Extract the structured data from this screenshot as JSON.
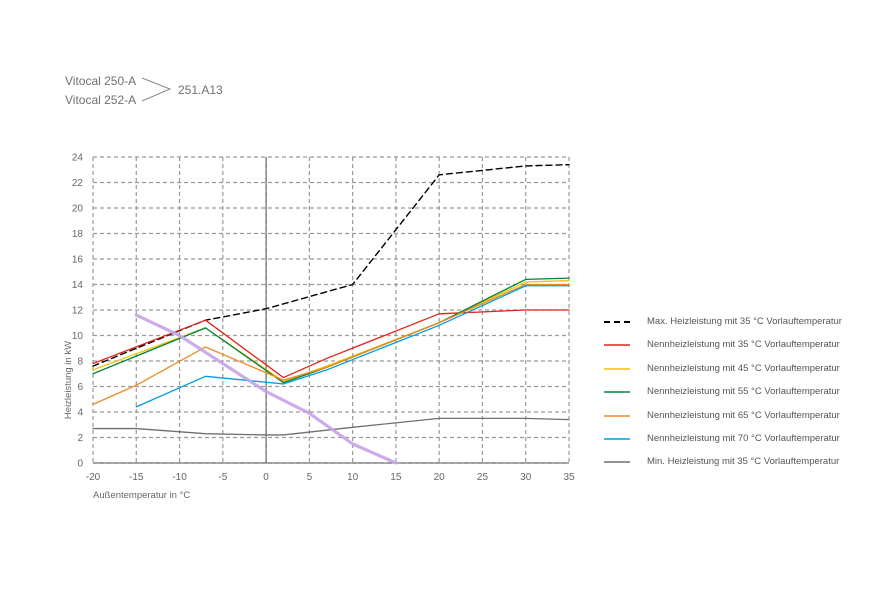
{
  "header": {
    "model_1": "Vitocal 250-A",
    "model_2": "Vitocal 252-A",
    "code": "251.A13"
  },
  "chart_data": {
    "type": "line",
    "xlabel": "Außentemperatur in °C",
    "ylabel": "Heizleistung in kW",
    "xlim": [
      -20,
      35
    ],
    "ylim": [
      0,
      24
    ],
    "xticks": [
      -20,
      -15,
      -10,
      -5,
      0,
      5,
      10,
      15,
      20,
      25,
      30,
      35
    ],
    "yticks": [
      0,
      2,
      4,
      6,
      8,
      10,
      12,
      14,
      16,
      18,
      20,
      22,
      24
    ],
    "grid": true,
    "legend_position": "right",
    "series": [
      {
        "name": "Max. Heizleistung mit 35 °C Vorlauftemperatur",
        "color": "#000000",
        "style": "dashed",
        "x": [
          -20,
          -15,
          -7,
          0,
          10,
          20,
          30,
          35
        ],
        "y": [
          7.6,
          9.0,
          11.2,
          12.1,
          14.0,
          22.6,
          23.3,
          23.4
        ]
      },
      {
        "name": "Nennheizleistung mit 35 °C Vorlauftemperatur",
        "color": "#e2231a",
        "style": "solid",
        "x": [
          -20,
          -7,
          2,
          7,
          20,
          30,
          35
        ],
        "y": [
          7.8,
          11.2,
          6.7,
          8.2,
          11.7,
          12.0,
          12.0
        ]
      },
      {
        "name": "Nennheizleistung mit 45 °C Vorlauftemperatur",
        "color": "#f4c400",
        "style": "solid",
        "x": [
          -20,
          -7,
          2,
          7,
          20,
          30,
          35
        ],
        "y": [
          7.3,
          10.6,
          6.4,
          7.6,
          11.0,
          14.2,
          14.3
        ]
      },
      {
        "name": "Nennheizleistung mit 55 °C Vorlauftemperatur",
        "color": "#00843d",
        "style": "solid",
        "x": [
          -20,
          -7,
          2,
          7,
          20,
          30,
          35
        ],
        "y": [
          7.0,
          10.6,
          6.3,
          7.5,
          11.0,
          14.4,
          14.5
        ]
      },
      {
        "name": "Nennheizleistung mit 65 °C Vorlauftemperatur",
        "color": "#f08a24",
        "style": "solid",
        "x": [
          -20,
          -15,
          -7,
          2,
          7,
          20,
          30,
          35
        ],
        "y": [
          4.6,
          6.1,
          9.1,
          6.5,
          7.5,
          11.0,
          14.0,
          14.0
        ]
      },
      {
        "name": "Nennheizleistung mit 70 °C Vorlauftemperatur",
        "color": "#009fe3",
        "style": "solid",
        "x": [
          -15,
          -7,
          2,
          7,
          20,
          30,
          35
        ],
        "y": [
          4.4,
          6.8,
          6.2,
          7.3,
          10.8,
          13.9,
          13.9
        ]
      },
      {
        "name": "Min. Heizleistung mit 35 °C Vorlauftemperatur",
        "color": "#6f6f6f",
        "style": "solid",
        "x": [
          -20,
          -15,
          -7,
          0,
          2,
          10,
          20,
          30,
          35
        ],
        "y": [
          2.7,
          2.7,
          2.3,
          2.2,
          2.2,
          2.8,
          3.5,
          3.5,
          3.4
        ]
      },
      {
        "name": "",
        "color": "#c6a2e8",
        "style": "solid",
        "width": 3.2,
        "legend": false,
        "x": [
          -15,
          -10,
          -5,
          0,
          5,
          10,
          15
        ],
        "y": [
          11.6,
          10.0,
          7.8,
          5.6,
          3.9,
          1.5,
          0.0
        ]
      }
    ]
  }
}
